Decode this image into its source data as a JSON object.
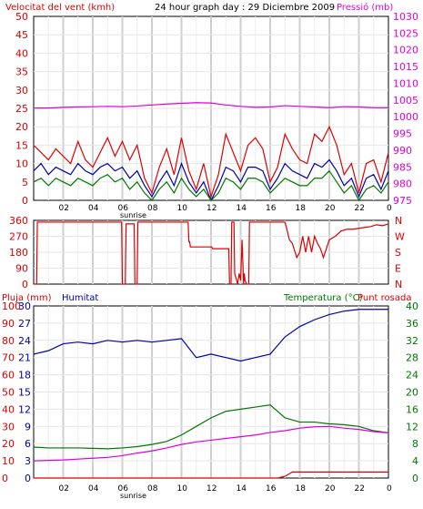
{
  "colors": {
    "red": "#dd0000",
    "green": "#007700",
    "blue": "#0000aa",
    "magenta": "#dd00dd",
    "black": "#000000",
    "grid": "#cccccc",
    "gridDark": "#999999"
  },
  "x_ticks": [
    "02",
    "04",
    "06",
    "08",
    "10",
    "12",
    "14",
    "16",
    "18",
    "20",
    "22",
    "0"
  ],
  "sunrise_label": "sunrise",
  "chart_data": [
    {
      "type": "line",
      "title": "24 hour graph day : 29 Diciembre 2009",
      "y_left_label": "Velocitat del vent (kmh)",
      "y_right_label": "Pressió (mb)",
      "y_left_ticks": [
        "50",
        "45",
        "40",
        "35",
        "30",
        "25",
        "20",
        "15",
        "10",
        "5",
        "0"
      ],
      "y_right_ticks": [
        "1030",
        "1025",
        "1020",
        "1015",
        "1010",
        "1005",
        "1000",
        "995",
        "990",
        "985",
        "980",
        "975"
      ],
      "ylim_left": [
        0,
        50
      ],
      "ylim_right": [
        975,
        1030
      ],
      "series": [
        {
          "key": "pressure",
          "axis": "right",
          "color": "magenta",
          "x": [
            0,
            1,
            2,
            3,
            4,
            5,
            6,
            7,
            8,
            9,
            10,
            11,
            12,
            13,
            14,
            15,
            16,
            17,
            18,
            19,
            20,
            21,
            22,
            23,
            24
          ],
          "values": [
            1002.6,
            1002.6,
            1002.8,
            1002.9,
            1003.0,
            1003.1,
            1003.0,
            1003.2,
            1003.5,
            1003.8,
            1004.0,
            1004.2,
            1004.1,
            1003.5,
            1003.1,
            1002.8,
            1002.9,
            1003.3,
            1003.1,
            1002.9,
            1002.7,
            1003.0,
            1002.9,
            1002.7,
            1002.7
          ]
        },
        {
          "key": "gust",
          "axis": "left",
          "color": "red",
          "x": [
            0,
            0.5,
            1,
            1.5,
            2,
            2.5,
            3,
            3.5,
            4,
            4.5,
            5,
            5.5,
            6,
            6.5,
            7,
            7.5,
            8,
            8.5,
            9,
            9.5,
            10,
            10.5,
            11,
            11.5,
            12,
            12.5,
            13,
            13.5,
            14,
            14.5,
            15,
            15.5,
            16,
            16.5,
            17,
            17.5,
            18,
            18.5,
            19,
            19.5,
            20,
            20.5,
            21,
            21.5,
            22,
            22.5,
            23,
            23.5,
            24
          ],
          "values": [
            15,
            13,
            11,
            14,
            12,
            10,
            16,
            11,
            9,
            13,
            17,
            12,
            16,
            11,
            15,
            6,
            2,
            9,
            14,
            7,
            17,
            8,
            3,
            10,
            1,
            7,
            18,
            13,
            8,
            15,
            17,
            14,
            5,
            9,
            18,
            14,
            11,
            10,
            18,
            16,
            20,
            15,
            7,
            10,
            2,
            10,
            11,
            5,
            13
          ]
        },
        {
          "key": "average",
          "axis": "left",
          "color": "blue",
          "x": [
            0,
            0.5,
            1,
            1.5,
            2,
            2.5,
            3,
            3.5,
            4,
            4.5,
            5,
            5.5,
            6,
            6.5,
            7,
            7.5,
            8,
            8.5,
            9,
            9.5,
            10,
            10.5,
            11,
            11.5,
            12,
            12.5,
            13,
            13.5,
            14,
            14.5,
            15,
            15.5,
            16,
            16.5,
            17,
            17.5,
            18,
            18.5,
            19,
            19.5,
            20,
            20.5,
            21,
            21.5,
            22,
            22.5,
            23,
            23.5,
            24
          ],
          "values": [
            8,
            10,
            7,
            9,
            8,
            7,
            10,
            8,
            7,
            9,
            10,
            8,
            9,
            6,
            8,
            4,
            1,
            5,
            8,
            4,
            10,
            5,
            2,
            5,
            0,
            4,
            9,
            8,
            5,
            9,
            9,
            8,
            3,
            6,
            10,
            8,
            7,
            6,
            10,
            9,
            11,
            8,
            4,
            6,
            1,
            6,
            7,
            3,
            8
          ]
        },
        {
          "key": "wind",
          "axis": "left",
          "color": "green",
          "x": [
            0,
            0.5,
            1,
            1.5,
            2,
            2.5,
            3,
            3.5,
            4,
            4.5,
            5,
            5.5,
            6,
            6.5,
            7,
            7.5,
            8,
            8.5,
            9,
            9.5,
            10,
            10.5,
            11,
            11.5,
            12,
            12.5,
            13,
            13.5,
            14,
            14.5,
            15,
            15.5,
            16,
            16.5,
            17,
            17.5,
            18,
            18.5,
            19,
            19.5,
            20,
            20.5,
            21,
            21.5,
            22,
            22.5,
            23,
            23.5,
            24
          ],
          "values": [
            5,
            6,
            4,
            6,
            5,
            4,
            6,
            5,
            4,
            6,
            7,
            5,
            6,
            3,
            5,
            2,
            0,
            3,
            5,
            2,
            6,
            3,
            1,
            3,
            0,
            2,
            6,
            5,
            3,
            6,
            6,
            5,
            2,
            4,
            6,
            5,
            4,
            4,
            6,
            6,
            8,
            5,
            2,
            4,
            0,
            3,
            4,
            2,
            5
          ]
        }
      ]
    },
    {
      "type": "line",
      "y_left_ticks": [
        "360",
        "270",
        "180",
        "90",
        "0"
      ],
      "y_right_ticks": [
        "N",
        "W",
        "S",
        "E",
        "N"
      ],
      "ylim": [
        0,
        360
      ],
      "series": [
        {
          "key": "direction",
          "color": "red",
          "x": [
            0,
            0.2,
            0.25,
            5.95,
            6,
            6.2,
            6.25,
            6.8,
            6.85,
            7.0,
            7.05,
            10.45,
            10.5,
            10.55,
            10.6,
            12.05,
            12.1,
            13.2,
            13.25,
            13.35,
            13.4,
            13.55,
            13.6,
            13.7,
            13.8,
            13.9,
            14.0,
            14.1,
            14.2,
            14.25,
            14.3,
            14.4,
            14.45,
            14.55,
            14.6,
            17.0,
            17.1,
            17.3,
            17.5,
            17.8,
            18.0,
            18.2,
            18.4,
            18.6,
            18.8,
            19.0,
            19.2,
            19.4,
            19.6,
            20.0,
            20.4,
            20.8,
            21.2,
            21.6,
            22.0,
            22.4,
            22.8,
            23.2,
            23.6,
            24.0
          ],
          "values": [
            0,
            0,
            350,
            350,
            0,
            0,
            340,
            340,
            0,
            0,
            350,
            350,
            240,
            240,
            210,
            210,
            200,
            200,
            0,
            0,
            350,
            350,
            60,
            30,
            0,
            60,
            20,
            250,
            0,
            60,
            20,
            0,
            0,
            0,
            350,
            350,
            320,
            250,
            230,
            150,
            180,
            270,
            180,
            270,
            180,
            270,
            230,
            200,
            150,
            250,
            270,
            300,
            310,
            310,
            315,
            320,
            325,
            335,
            330,
            340
          ]
        }
      ]
    },
    {
      "type": "line",
      "y_rain_label": "Pluja (mm)",
      "y_hum_label": "Humitat",
      "y_right_label": "Temperatura (°C)",
      "y_right_label2": "Punt rosada",
      "y_rain_ticks": [
        "100",
        "90",
        "80",
        "70",
        "60",
        "50",
        "40",
        "30",
        "20",
        "10",
        "0"
      ],
      "y_hum_ticks": [
        "30",
        "27",
        "24",
        "21",
        "18",
        "15",
        "12",
        "9",
        "6",
        "3",
        "0"
      ],
      "y_right_ticks": [
        "40",
        "36",
        "32",
        "28",
        "24",
        "20",
        "16",
        "12",
        "8",
        "4",
        "0"
      ],
      "ylim_rain": [
        0,
        100
      ],
      "ylim_temp": [
        0,
        40
      ],
      "series": [
        {
          "key": "humidity",
          "color": "blue",
          "axis": "rain",
          "x": [
            0,
            1,
            2,
            3,
            4,
            5,
            6,
            7,
            8,
            9,
            10,
            11,
            12,
            13,
            14,
            15,
            16,
            17,
            18,
            19,
            20,
            21,
            22,
            23,
            24
          ],
          "values": [
            72,
            74,
            78,
            79,
            78,
            80,
            79,
            80,
            79,
            80,
            81,
            70,
            72,
            70,
            68,
            70,
            72,
            82,
            88,
            92,
            95,
            97,
            98,
            98,
            98
          ]
        },
        {
          "key": "temperature",
          "color": "green",
          "axis": "temp",
          "x": [
            0,
            1,
            2,
            3,
            4,
            5,
            6,
            7,
            8,
            9,
            10,
            11,
            12,
            13,
            14,
            15,
            16,
            17,
            18,
            19,
            20,
            21,
            22,
            23,
            24
          ],
          "values": [
            7.2,
            7.0,
            7.0,
            7.0,
            6.9,
            6.8,
            7.0,
            7.3,
            7.8,
            8.5,
            10.0,
            12.0,
            14.0,
            15.5,
            16.0,
            16.5,
            17.0,
            14.0,
            13.0,
            13.0,
            12.6,
            12.4,
            12.0,
            11.0,
            10.5
          ]
        },
        {
          "key": "dewpoint",
          "color": "magenta",
          "axis": "temp",
          "x": [
            0,
            1,
            2,
            3,
            4,
            5,
            6,
            7,
            8,
            9,
            10,
            11,
            12,
            13,
            14,
            15,
            16,
            17,
            18,
            19,
            20,
            21,
            22,
            23,
            24
          ],
          "values": [
            4.0,
            4.1,
            4.2,
            4.4,
            4.6,
            4.8,
            5.2,
            5.8,
            6.3,
            7.0,
            7.8,
            8.4,
            8.8,
            9.2,
            9.6,
            10.0,
            10.6,
            11.0,
            11.6,
            11.9,
            12.0,
            11.6,
            11.3,
            10.8,
            10.5
          ]
        },
        {
          "key": "rain",
          "color": "red",
          "axis": "rain",
          "x": [
            0,
            16.5,
            17,
            17.5,
            18,
            24
          ],
          "values": [
            0,
            0,
            1,
            3.5,
            3.5,
            3.5
          ]
        }
      ]
    }
  ]
}
